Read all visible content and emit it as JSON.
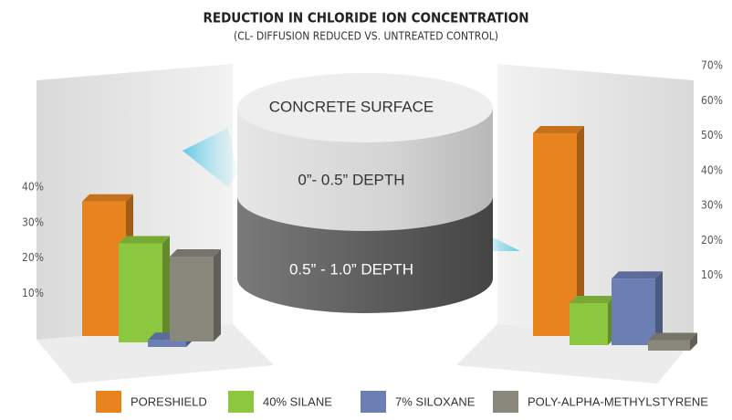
{
  "title": "REDUCTION IN CHLORIDE ION CONCENTRATION",
  "subtitle": "(CL- DIFFUSION REDUCED VS. UNTREATED CONTROL)",
  "cylinder": [
    "CONCRETE SURFACE",
    "0”- 0.5” DEPTH",
    "0.5” - 1.0” DEPTH"
  ],
  "legend": [
    {
      "name": "PORESHIELD",
      "color": "#e8841e"
    },
    {
      "name": "40% SILANE",
      "color": "#8dc63f"
    },
    {
      "name": "7% SILOXANE",
      "color": "#6b7fb5"
    },
    {
      "name": "POLY-ALPHA-METHYLSTYRENE",
      "color": "#8a887d"
    }
  ],
  "chart_data": [
    {
      "type": "bar",
      "values": [
        38,
        28,
        2,
        24
      ],
      "ylim": [
        0,
        40
      ],
      "yticks": [
        {
          "value": 10,
          "label": "10%"
        },
        {
          "value": 20,
          "label": "20%"
        },
        {
          "value": 30,
          "label": "30%"
        },
        {
          "value": 40,
          "label": "40%"
        }
      ]
    },
    {
      "type": "bar",
      "values": [
        58,
        12,
        19,
        3
      ],
      "ylim": [
        0,
        70
      ],
      "yticks": [
        {
          "value": 10,
          "label": "10%"
        },
        {
          "value": 20,
          "label": "20%"
        },
        {
          "value": 30,
          "label": "30%"
        },
        {
          "value": 40,
          "label": "40%"
        },
        {
          "value": 50,
          "label": "50%"
        },
        {
          "value": 60,
          "label": "60%"
        },
        {
          "value": 70,
          "label": "70%"
        }
      ]
    }
  ]
}
